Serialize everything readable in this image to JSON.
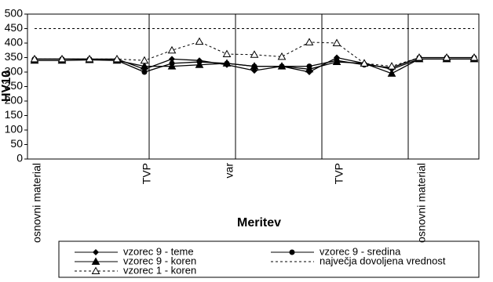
{
  "chart_data": {
    "type": "line",
    "y_label": "HV10",
    "x_label": "Meritev",
    "categories": [
      "osnovni material",
      null,
      null,
      null,
      "TVP",
      null,
      null,
      "var",
      null,
      null,
      null,
      "TVP",
      null,
      null,
      "osnovni material",
      null,
      null
    ],
    "ylim": [
      0,
      500
    ],
    "yticks": [
      0,
      50,
      100,
      150,
      200,
      250,
      300,
      350,
      400,
      450,
      500
    ],
    "series": [
      {
        "name": "vzorec 9 - teme",
        "color": "#000000",
        "marker": "diamond",
        "dashed": false,
        "values": [
          345,
          345,
          345,
          345,
          310,
          345,
          340,
          325,
          305,
          320,
          300,
          350,
          330,
          310,
          345,
          345,
          345
        ]
      },
      {
        "name": "vzorec 9 - sredina",
        "color": "#000000",
        "marker": "circle",
        "dashed": false,
        "values": [
          345,
          345,
          345,
          340,
          300,
          330,
          335,
          330,
          320,
          320,
          320,
          340,
          325,
          315,
          350,
          350,
          350
        ]
      },
      {
        "name": "vzorec 9 - koren",
        "color": "#000000",
        "marker": "triangle",
        "dashed": false,
        "values": [
          340,
          340,
          342,
          340,
          320,
          320,
          325,
          330,
          320,
          320,
          310,
          335,
          330,
          295,
          345,
          345,
          345
        ]
      },
      {
        "name": "največja dovoljena vrednost",
        "color": "#000000",
        "marker": "none",
        "dashed": true,
        "values": [
          450,
          450,
          450,
          450,
          450,
          450,
          450,
          450,
          450,
          450,
          450,
          450,
          450,
          450,
          450,
          450,
          450
        ]
      },
      {
        "name": "vzorec 1 - koren",
        "color": "#000000",
        "marker": "open-triangle",
        "dashed": true,
        "values": [
          345,
          345,
          345,
          345,
          340,
          375,
          405,
          362,
          360,
          353,
          403,
          400,
          330,
          320,
          350,
          350,
          350
        ]
      }
    ]
  }
}
